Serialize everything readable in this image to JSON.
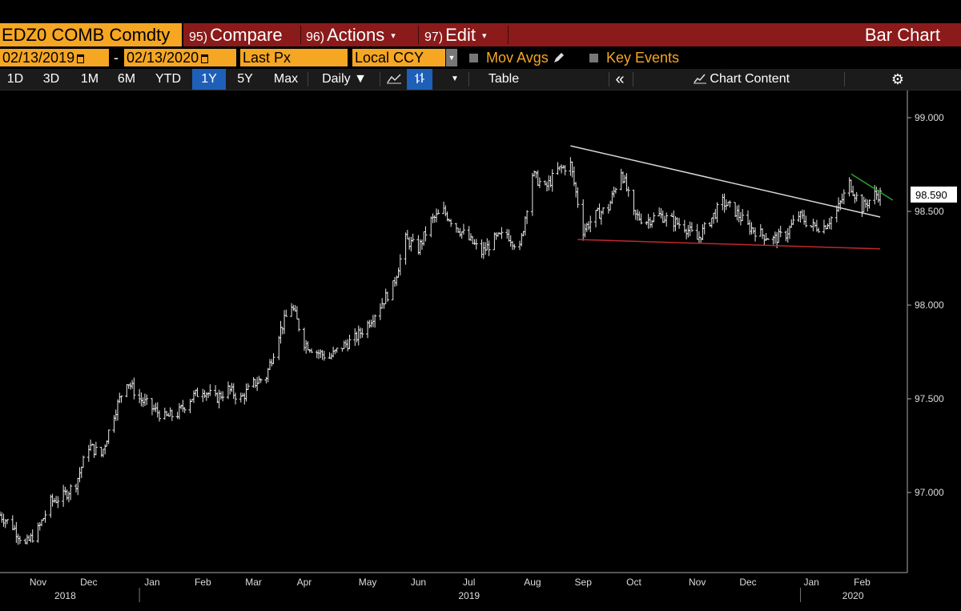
{
  "toolbar1": {
    "security": "EDZ0 COMB Comdty",
    "menus": [
      {
        "num": "95)",
        "label": "Compare",
        "arrow": ""
      },
      {
        "num": "96)",
        "label": "Actions",
        "arrow": "▾"
      },
      {
        "num": "97)",
        "label": "Edit",
        "arrow": "▾"
      }
    ],
    "chart_type": "Bar Chart"
  },
  "toolbar2": {
    "start_date": "02/13/2019",
    "dash": "-",
    "end_date": "02/13/2020",
    "field": "Last Px",
    "currency": "Local CCY",
    "mov_avgs": "Mov Avgs",
    "key_events": "Key Events"
  },
  "toolbar3": {
    "ranges": [
      "1D",
      "3D",
      "1M",
      "6M",
      "YTD",
      "1Y",
      "5Y",
      "Max"
    ],
    "active_range": "1Y",
    "periodicity": "Daily ▼",
    "table": "Table",
    "collapse": "«",
    "chart_content": "Chart Content",
    "settings": "⚙"
  },
  "colors": {
    "accent": "#f5a623",
    "menu_bar": "#8b1a1a",
    "active_tab": "#1e5fb8",
    "price_bars": "#e8e8e8",
    "upper_trendline": "#d8d8d8",
    "lower_trendline": "#c0282d",
    "short_trendline": "#2ca02c"
  },
  "chart_data": {
    "type": "bar",
    "title": "",
    "xlabel": "",
    "ylabel": "",
    "ylim": [
      96.6,
      99.1
    ],
    "yticks": [
      97.0,
      97.5,
      98.0,
      98.5,
      99.0
    ],
    "ytick_labels": [
      "97.000",
      "97.500",
      "98.000",
      "98.500",
      "99.000"
    ],
    "last_price_label": "98.590",
    "last_price": 98.59,
    "xlim": [
      "2018-10-15",
      "2020-02-28"
    ],
    "months": [
      {
        "label": "Nov",
        "date": "2018-11-05"
      },
      {
        "label": "Dec",
        "date": "2018-12-03"
      },
      {
        "label": "Jan",
        "date": "2019-01-07"
      },
      {
        "label": "Feb",
        "date": "2019-02-04"
      },
      {
        "label": "Mar",
        "date": "2019-03-04"
      },
      {
        "label": "Apr",
        "date": "2019-04-01"
      },
      {
        "label": "May",
        "date": "2019-05-06"
      },
      {
        "label": "Jun",
        "date": "2019-06-03"
      },
      {
        "label": "Jul",
        "date": "2019-07-01"
      },
      {
        "label": "Aug",
        "date": "2019-08-05"
      },
      {
        "label": "Sep",
        "date": "2019-09-02"
      },
      {
        "label": "Oct",
        "date": "2019-09-30"
      },
      {
        "label": "Nov",
        "date": "2019-11-04"
      },
      {
        "label": "Dec",
        "date": "2019-12-02"
      },
      {
        "label": "Jan",
        "date": "2020-01-06"
      },
      {
        "label": "Feb",
        "date": "2020-02-03"
      }
    ],
    "years": [
      {
        "label": "2018",
        "date": "2018-11-20"
      },
      {
        "label": "2019",
        "date": "2019-07-01"
      },
      {
        "label": "2020",
        "date": "2020-01-29"
      }
    ],
    "year_separators": [
      "2018-12-31",
      "2019-12-31"
    ],
    "series": [
      {
        "close": [
          [
            "2018-10-15",
            96.88
          ],
          [
            "2018-10-22",
            96.82
          ],
          [
            "2018-10-29",
            96.72
          ],
          [
            "2018-11-05",
            96.8
          ],
          [
            "2018-11-12",
            96.95
          ],
          [
            "2018-11-19",
            96.98
          ],
          [
            "2018-11-26",
            97.05
          ],
          [
            "2018-12-03",
            97.25
          ],
          [
            "2018-12-10",
            97.2
          ],
          [
            "2018-12-17",
            97.42
          ],
          [
            "2018-12-24",
            97.6
          ],
          [
            "2018-12-31",
            97.5
          ],
          [
            "2019-01-07",
            97.45
          ],
          [
            "2019-01-14",
            97.4
          ],
          [
            "2019-01-21",
            97.42
          ],
          [
            "2019-01-28",
            97.5
          ],
          [
            "2019-02-04",
            97.55
          ],
          [
            "2019-02-11",
            97.5
          ],
          [
            "2019-02-18",
            97.55
          ],
          [
            "2019-02-25",
            97.5
          ],
          [
            "2019-03-04",
            97.58
          ],
          [
            "2019-03-11",
            97.62
          ],
          [
            "2019-03-18",
            97.85
          ],
          [
            "2019-03-25",
            98.0
          ],
          [
            "2019-04-01",
            97.8
          ],
          [
            "2019-04-08",
            97.75
          ],
          [
            "2019-04-15",
            97.72
          ],
          [
            "2019-04-22",
            97.78
          ],
          [
            "2019-04-29",
            97.82
          ],
          [
            "2019-05-06",
            97.9
          ],
          [
            "2019-05-13",
            98.0
          ],
          [
            "2019-05-20",
            98.1
          ],
          [
            "2019-05-27",
            98.35
          ],
          [
            "2019-06-03",
            98.3
          ],
          [
            "2019-06-10",
            98.45
          ],
          [
            "2019-06-17",
            98.5
          ],
          [
            "2019-06-24",
            98.42
          ],
          [
            "2019-07-01",
            98.35
          ],
          [
            "2019-07-08",
            98.28
          ],
          [
            "2019-07-15",
            98.35
          ],
          [
            "2019-07-22",
            98.38
          ],
          [
            "2019-07-29",
            98.3
          ],
          [
            "2019-08-05",
            98.7
          ],
          [
            "2019-08-12",
            98.62
          ],
          [
            "2019-08-19",
            98.72
          ],
          [
            "2019-08-26",
            98.75
          ],
          [
            "2019-09-02",
            98.4
          ],
          [
            "2019-09-09",
            98.48
          ],
          [
            "2019-09-16",
            98.52
          ],
          [
            "2019-09-23",
            98.72
          ],
          [
            "2019-09-30",
            98.48
          ],
          [
            "2019-10-07",
            98.45
          ],
          [
            "2019-10-14",
            98.48
          ],
          [
            "2019-10-21",
            98.45
          ],
          [
            "2019-10-28",
            98.42
          ],
          [
            "2019-11-04",
            98.35
          ],
          [
            "2019-11-11",
            98.45
          ],
          [
            "2019-11-18",
            98.55
          ],
          [
            "2019-11-25",
            98.5
          ],
          [
            "2019-12-02",
            98.42
          ],
          [
            "2019-12-09",
            98.38
          ],
          [
            "2019-12-16",
            98.35
          ],
          [
            "2019-12-23",
            98.38
          ],
          [
            "2019-12-30",
            98.48
          ],
          [
            "2020-01-06",
            98.42
          ],
          [
            "2020-01-13",
            98.42
          ],
          [
            "2020-01-20",
            98.5
          ],
          [
            "2020-01-27",
            98.65
          ],
          [
            "2020-02-03",
            98.52
          ],
          [
            "2020-02-10",
            98.59
          ]
        ]
      }
    ],
    "trendlines": [
      {
        "from": [
          "2019-08-26",
          98.85
        ],
        "to": [
          "2020-02-13",
          98.47
        ]
      },
      {
        "from": [
          "2019-08-30",
          98.35
        ],
        "to": [
          "2020-02-13",
          98.3
        ]
      },
      {
        "from": [
          "2020-01-28",
          98.7
        ],
        "to": [
          "2020-02-20",
          98.56
        ]
      }
    ]
  }
}
